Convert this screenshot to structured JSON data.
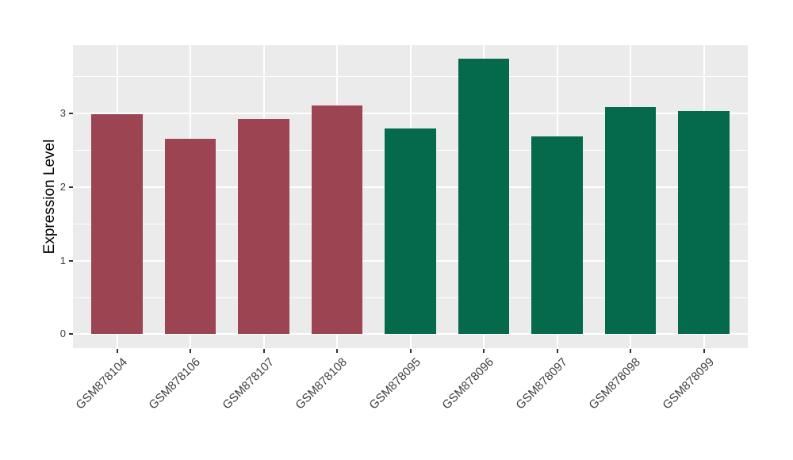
{
  "chart_data": {
    "type": "bar",
    "title": "",
    "xlabel": "",
    "ylabel": "Expression Level",
    "categories": [
      "GSM878104",
      "GSM878106",
      "GSM878107",
      "GSM878108",
      "GSM878095",
      "GSM878096",
      "GSM878097",
      "GSM878098",
      "GSM878099"
    ],
    "values": [
      2.99,
      2.66,
      2.93,
      3.11,
      2.8,
      3.75,
      2.69,
      3.09,
      3.04
    ],
    "bar_colors": [
      "#9C4452",
      "#9C4452",
      "#9C4452",
      "#9C4452",
      "#046A4B",
      "#046A4B",
      "#046A4B",
      "#046A4B",
      "#046A4B"
    ],
    "group_colors": {
      "maroon": "#9C4452",
      "green": "#046A4B"
    },
    "yticks": [
      0,
      1,
      2,
      3
    ],
    "yticks_minor": [
      0.5,
      1.5,
      2.5,
      3.5
    ],
    "ylim": [
      -0.19,
      3.93
    ],
    "bar_width_frac": 0.7,
    "grid": "on",
    "legend_position": "none",
    "panel_bg": "#EBEBEB",
    "grid_color": "#FFFFFF",
    "tick_color": "#333333",
    "axis_text_color": "#404040",
    "axis_title_color": "#000000",
    "figure_bg": "#FFFFFF"
  }
}
